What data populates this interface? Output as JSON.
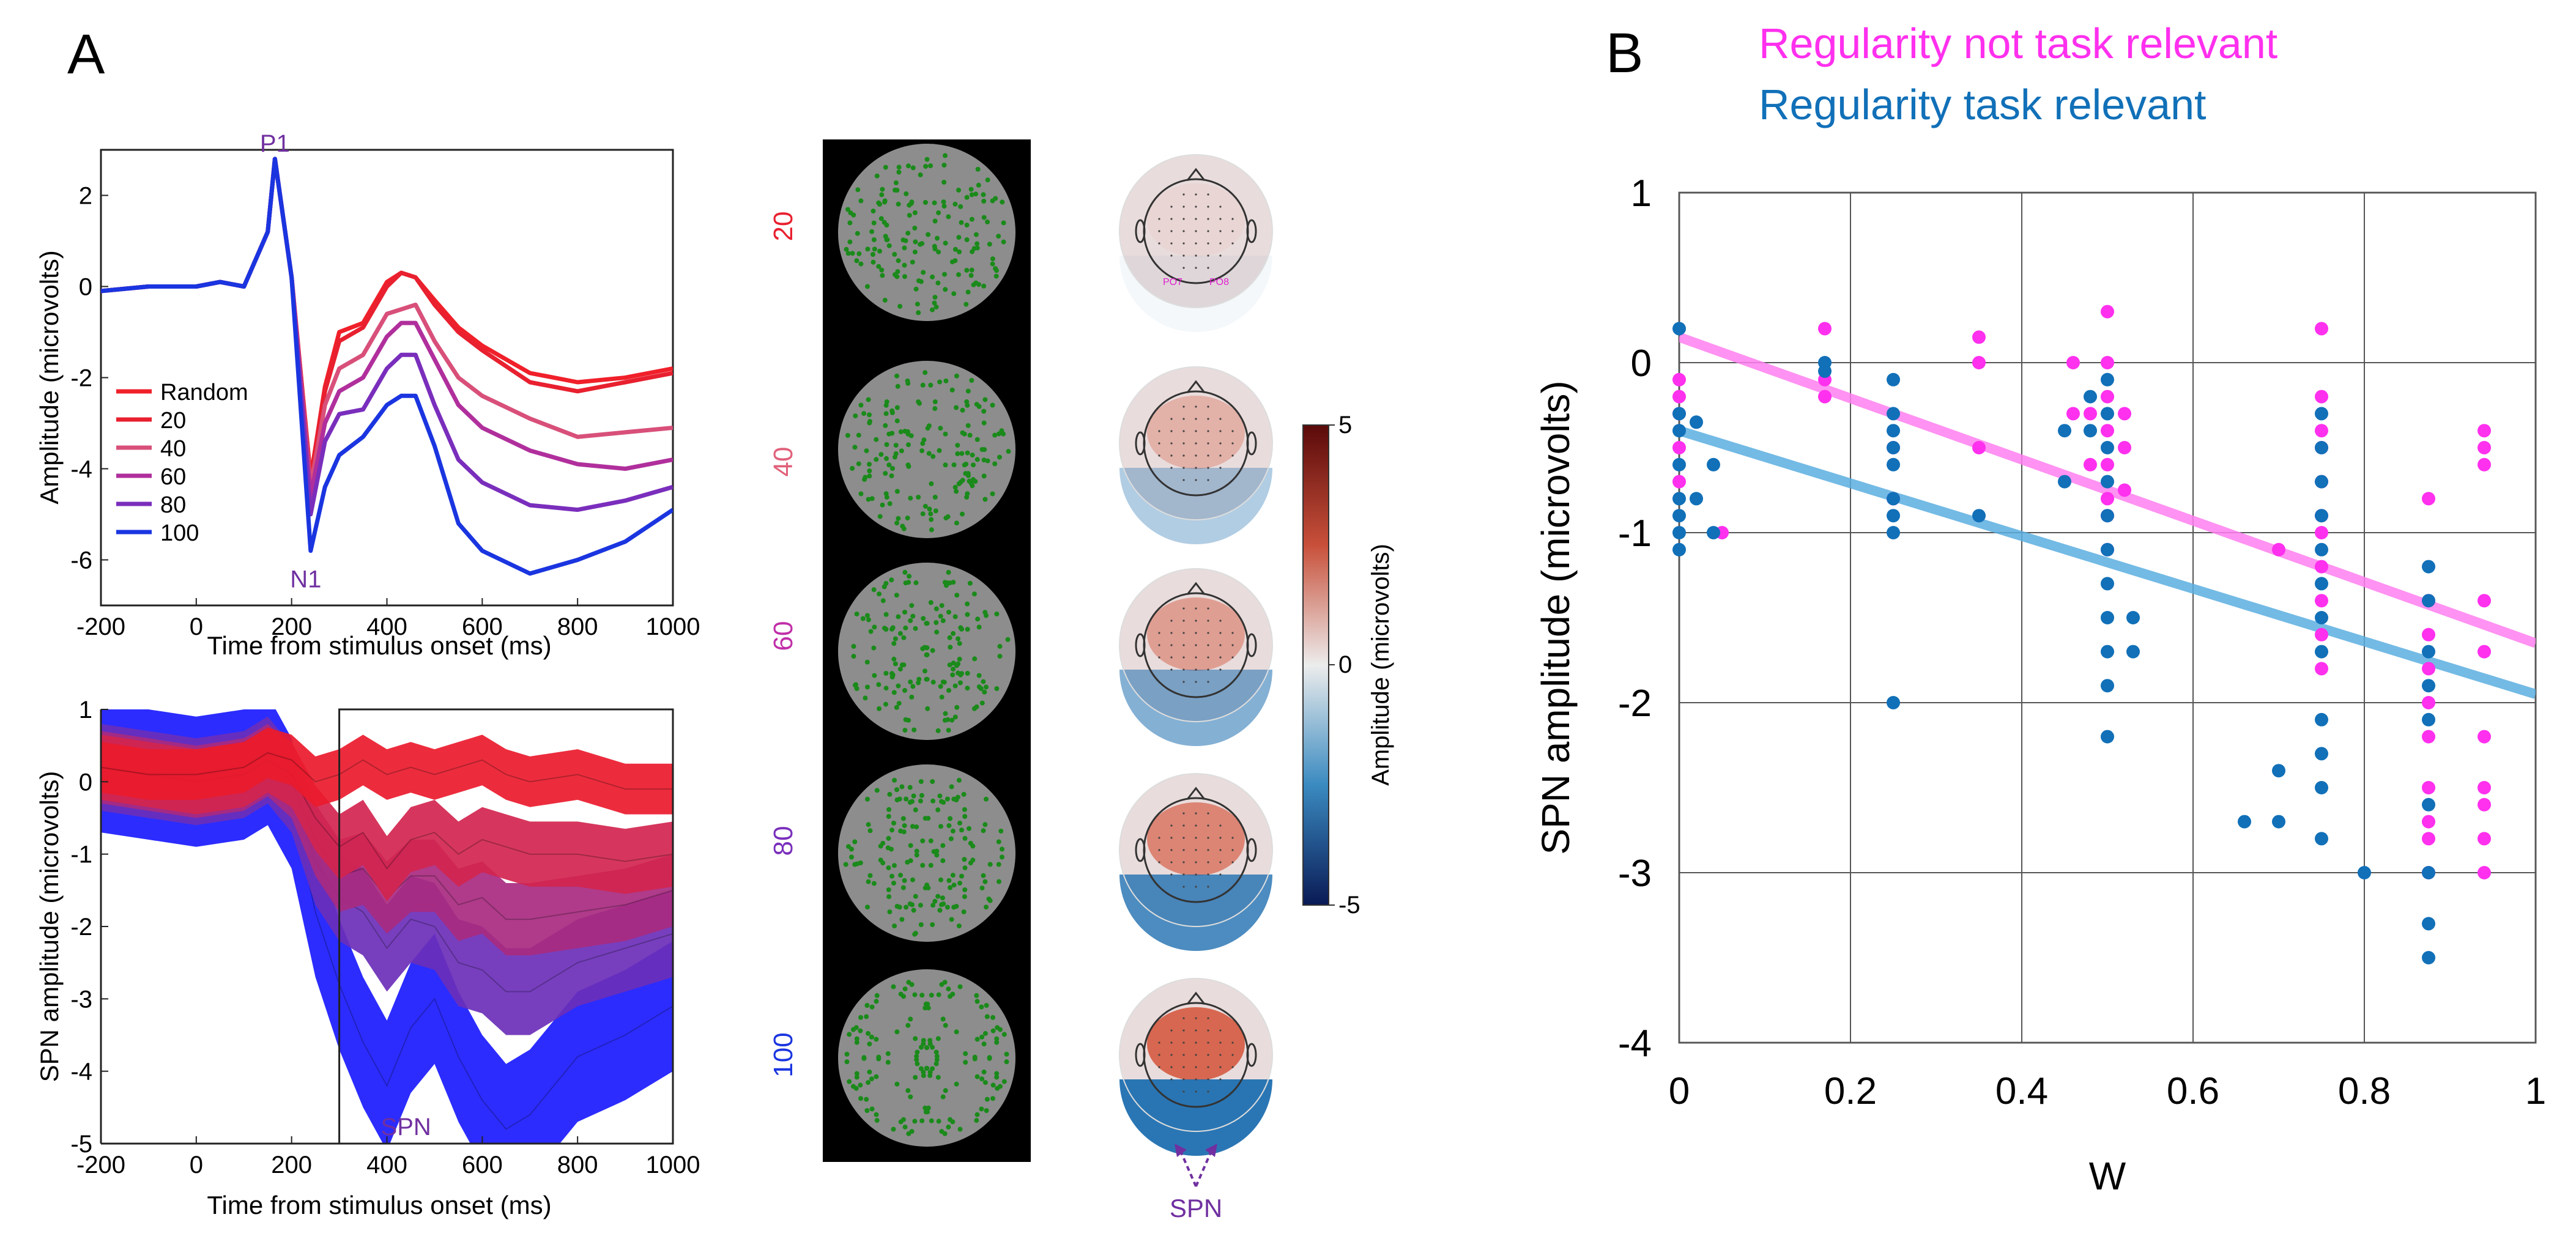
{
  "panel_a": {
    "label": "A",
    "erp": {
      "ylabel": "Amplitude (microvolts)",
      "xlabel": "Time from stimulus onset (ms)",
      "peaks": {
        "p1": "P1",
        "n1": "N1"
      },
      "yticks": [
        "2",
        "0",
        "-2",
        "-4",
        "-6"
      ],
      "xticks": [
        "-200",
        "0",
        "200",
        "400",
        "600",
        "800",
        "1000"
      ],
      "legend": [
        "Random",
        "20",
        "40",
        "60",
        "80",
        "100"
      ]
    },
    "spn": {
      "ylabel": "SPN amplitude (microvolts)",
      "xlabel": "Time from stimulus onset (ms)",
      "window_label": "SPN",
      "yticks": [
        "1",
        "0",
        "-1",
        "-2",
        "-3",
        "-4",
        "-5"
      ],
      "xticks": [
        "-200",
        "0",
        "200",
        "400",
        "600",
        "800",
        "1000"
      ]
    },
    "conditions": [
      "20",
      "40",
      "60",
      "80",
      "100"
    ],
    "colorbar": {
      "label": "Amplitude (microvolts)",
      "max": "5",
      "mid": "0",
      "min": "-5"
    },
    "topo_electrodes": {
      "left": "PO7",
      "right": "PO8"
    },
    "topo_spn_label": "SPN"
  },
  "panel_b": {
    "label": "B",
    "legend": {
      "not_relevant": "Regularity not task relevant",
      "relevant": "Regularity task relevant"
    },
    "ylabel": "SPN amplitude (microvolts)",
    "xlabel": "W",
    "yticks": [
      "1",
      "0",
      "-1",
      "-2",
      "-3",
      "-4"
    ],
    "xticks": [
      "0",
      "0.2",
      "0.4",
      "0.6",
      "0.8",
      "1"
    ]
  },
  "colors": {
    "magenta": "#ff30ee",
    "blue": "#1170b8",
    "purple_annot": "#7030a0",
    "cond20": "#e8202f",
    "cond40": "#d8507a",
    "cond60": "#b02f9c",
    "cond80": "#7a2ebc",
    "cond100": "#1a35e0"
  },
  "chart_data": [
    {
      "type": "line",
      "title": "",
      "xlabel": "Time from stimulus onset (ms)",
      "ylabel": "Amplitude (microvolts)",
      "xlim": [
        -200,
        1000
      ],
      "ylim": [
        -7,
        3
      ],
      "x": [
        -200,
        -100,
        0,
        50,
        100,
        150,
        165,
        200,
        240,
        270,
        300,
        350,
        400,
        430,
        460,
        500,
        550,
        600,
        700,
        800,
        900,
        1000
      ],
      "series": [
        {
          "name": "Random",
          "values": [
            -0.1,
            0,
            0,
            0.1,
            0,
            1.2,
            2.8,
            0.2,
            -4.2,
            -2.2,
            -1.0,
            -0.8,
            0.1,
            0.3,
            0.2,
            -0.3,
            -0.9,
            -1.3,
            -1.9,
            -2.1,
            -2.0,
            -1.8
          ]
        },
        {
          "name": "20",
          "values": [
            -0.1,
            0,
            0,
            0.1,
            0,
            1.2,
            2.8,
            0.2,
            -4.2,
            -2.3,
            -1.2,
            -0.9,
            0.0,
            0.3,
            0.2,
            -0.4,
            -1.0,
            -1.4,
            -2.1,
            -2.3,
            -2.1,
            -1.9
          ]
        },
        {
          "name": "40",
          "values": [
            -0.1,
            0,
            0,
            0.1,
            0,
            1.2,
            2.8,
            0.2,
            -4.4,
            -2.6,
            -1.8,
            -1.5,
            -0.6,
            -0.5,
            -0.4,
            -1.2,
            -2.0,
            -2.4,
            -2.9,
            -3.3,
            -3.2,
            -3.1
          ]
        },
        {
          "name": "60",
          "values": [
            -0.1,
            0,
            0,
            0.1,
            0,
            1.2,
            2.8,
            0.2,
            -4.6,
            -3.0,
            -2.3,
            -2.0,
            -1.1,
            -0.8,
            -0.8,
            -1.6,
            -2.6,
            -3.1,
            -3.6,
            -3.9,
            -4.0,
            -3.8
          ]
        },
        {
          "name": "80",
          "values": [
            -0.1,
            0,
            0,
            0.1,
            0,
            1.2,
            2.8,
            0.2,
            -5.0,
            -3.4,
            -2.8,
            -2.7,
            -1.8,
            -1.5,
            -1.5,
            -2.6,
            -3.8,
            -4.3,
            -4.8,
            -4.9,
            -4.7,
            -4.4
          ]
        },
        {
          "name": "100",
          "values": [
            -0.1,
            0,
            0,
            0.1,
            0,
            1.2,
            2.8,
            0.2,
            -5.8,
            -4.4,
            -3.7,
            -3.3,
            -2.6,
            -2.4,
            -2.4,
            -3.5,
            -5.2,
            -5.8,
            -6.3,
            -6.0,
            -5.6,
            -4.9
          ]
        }
      ]
    },
    {
      "type": "area",
      "title": "",
      "xlabel": "Time from stimulus onset (ms)",
      "ylabel": "SPN amplitude (microvolts)",
      "xlim": [
        -200,
        1000
      ],
      "ylim": [
        -5,
        1
      ],
      "analysis_window": [
        300,
        1000
      ],
      "x": [
        -200,
        -100,
        0,
        100,
        150,
        200,
        250,
        300,
        350,
        400,
        450,
        500,
        550,
        600,
        650,
        700,
        800,
        900,
        1000
      ],
      "series": [
        {
          "name": "20",
          "mean": [
            0.2,
            0.1,
            0.1,
            0.2,
            0.4,
            0.3,
            0.0,
            0.1,
            0.3,
            0.1,
            0.2,
            0.1,
            0.2,
            0.3,
            0.1,
            0.0,
            0.1,
            -0.1,
            -0.1
          ],
          "half_width": 0.35
        },
        {
          "name": "40",
          "mean": [
            0.2,
            0.1,
            0.0,
            0.1,
            0.3,
            0.1,
            -0.5,
            -0.9,
            -0.7,
            -1.2,
            -0.8,
            -0.7,
            -1.0,
            -0.8,
            -0.9,
            -1.0,
            -1.0,
            -1.1,
            -1.0
          ],
          "half_width": 0.45
        },
        {
          "name": "60",
          "mean": [
            0.2,
            0.1,
            0.0,
            0.1,
            0.3,
            0.0,
            -0.8,
            -1.3,
            -1.2,
            -1.6,
            -1.3,
            -1.3,
            -1.7,
            -1.6,
            -1.9,
            -1.9,
            -1.8,
            -1.7,
            -1.5
          ],
          "half_width": 0.5
        },
        {
          "name": "80",
          "mean": [
            0.2,
            0.1,
            0.0,
            0.1,
            0.3,
            -0.1,
            -1.1,
            -1.6,
            -1.8,
            -2.3,
            -1.9,
            -2.0,
            -2.5,
            -2.6,
            -2.9,
            -2.9,
            -2.5,
            -2.3,
            -2.1
          ],
          "half_width": 0.6
        },
        {
          "name": "100",
          "mean": [
            0.2,
            0.1,
            0.0,
            0.1,
            0.3,
            -0.3,
            -1.8,
            -2.8,
            -3.6,
            -4.2,
            -3.4,
            -3.0,
            -3.8,
            -4.4,
            -4.8,
            -4.6,
            -3.8,
            -3.5,
            -3.1
          ],
          "half_width": 0.9
        }
      ]
    },
    {
      "type": "scatter",
      "title": "",
      "xlabel": "W",
      "ylabel": "SPN amplitude (microvolts)",
      "xlim": [
        0,
        1
      ],
      "ylim": [
        -4,
        1
      ],
      "grid": true,
      "legend_position": "top",
      "series": [
        {
          "name": "Regularity not task relevant",
          "points": [
            [
              0,
              -0.1
            ],
            [
              0,
              -0.2
            ],
            [
              0,
              -0.3
            ],
            [
              0,
              -0.5
            ],
            [
              0,
              -0.7
            ],
            [
              0.05,
              -1.0
            ],
            [
              0.17,
              0.2
            ],
            [
              0.17,
              -0.1
            ],
            [
              0.17,
              -0.2
            ],
            [
              0.25,
              -0.5
            ],
            [
              0.25,
              -0.8
            ],
            [
              0.35,
              0.15
            ],
            [
              0.35,
              0.0
            ],
            [
              0.35,
              -0.5
            ],
            [
              0.46,
              0.0
            ],
            [
              0.46,
              -0.3
            ],
            [
              0.48,
              -0.3
            ],
            [
              0.48,
              -0.6
            ],
            [
              0.5,
              0.3
            ],
            [
              0.5,
              0.0
            ],
            [
              0.5,
              -0.2
            ],
            [
              0.5,
              -0.4
            ],
            [
              0.5,
              -0.6
            ],
            [
              0.5,
              -0.8
            ],
            [
              0.5,
              -0.9
            ],
            [
              0.5,
              -1.1
            ],
            [
              0.52,
              -0.3
            ],
            [
              0.52,
              -0.5
            ],
            [
              0.52,
              -0.75
            ],
            [
              0.7,
              -1.1
            ],
            [
              0.75,
              0.2
            ],
            [
              0.75,
              -0.2
            ],
            [
              0.75,
              -0.4
            ],
            [
              0.75,
              -0.5
            ],
            [
              0.75,
              -0.7
            ],
            [
              0.75,
              -0.9
            ],
            [
              0.75,
              -1.0
            ],
            [
              0.75,
              -1.2
            ],
            [
              0.75,
              -1.4
            ],
            [
              0.75,
              -1.6
            ],
            [
              0.75,
              -1.8
            ],
            [
              0.875,
              -0.8
            ],
            [
              0.875,
              -1.4
            ],
            [
              0.875,
              -1.6
            ],
            [
              0.875,
              -1.8
            ],
            [
              0.875,
              -2.0
            ],
            [
              0.875,
              -2.2
            ],
            [
              0.875,
              -2.5
            ],
            [
              0.875,
              -2.7
            ],
            [
              0.875,
              -2.8
            ],
            [
              0.875,
              -3.0
            ],
            [
              0.94,
              -0.4
            ],
            [
              0.94,
              -0.5
            ],
            [
              0.94,
              -0.6
            ],
            [
              0.94,
              -1.4
            ],
            [
              0.94,
              -1.7
            ],
            [
              0.94,
              -2.2
            ],
            [
              0.94,
              -2.5
            ],
            [
              0.94,
              -2.6
            ],
            [
              0.94,
              -2.8
            ],
            [
              0.94,
              -3.0
            ]
          ],
          "trend": [
            [
              0,
              0.15
            ],
            [
              1,
              -1.65
            ]
          ]
        },
        {
          "name": "Regularity task relevant",
          "points": [
            [
              0,
              0.2
            ],
            [
              0,
              -0.3
            ],
            [
              0,
              -0.4
            ],
            [
              0,
              -0.6
            ],
            [
              0,
              -0.8
            ],
            [
              0,
              -0.9
            ],
            [
              0,
              -1.0
            ],
            [
              0,
              -1.1
            ],
            [
              0.02,
              -0.35
            ],
            [
              0.02,
              -0.8
            ],
            [
              0.04,
              -0.6
            ],
            [
              0.04,
              -1.0
            ],
            [
              0.17,
              0.0
            ],
            [
              0.17,
              -0.05
            ],
            [
              0.25,
              -0.1
            ],
            [
              0.25,
              -0.3
            ],
            [
              0.25,
              -0.4
            ],
            [
              0.25,
              -0.5
            ],
            [
              0.25,
              -0.6
            ],
            [
              0.25,
              -0.8
            ],
            [
              0.25,
              -0.9
            ],
            [
              0.25,
              -1.0
            ],
            [
              0.25,
              -2.0
            ],
            [
              0.35,
              -0.9
            ],
            [
              0.45,
              -0.4
            ],
            [
              0.45,
              -0.7
            ],
            [
              0.48,
              -0.2
            ],
            [
              0.48,
              -0.4
            ],
            [
              0.5,
              -0.1
            ],
            [
              0.5,
              -0.3
            ],
            [
              0.5,
              -0.5
            ],
            [
              0.5,
              -0.7
            ],
            [
              0.5,
              -0.9
            ],
            [
              0.5,
              -1.1
            ],
            [
              0.5,
              -1.3
            ],
            [
              0.5,
              -1.5
            ],
            [
              0.5,
              -1.7
            ],
            [
              0.5,
              -1.9
            ],
            [
              0.5,
              -2.2
            ],
            [
              0.53,
              -1.5
            ],
            [
              0.53,
              -1.7
            ],
            [
              0.66,
              -2.7
            ],
            [
              0.7,
              -2.7
            ],
            [
              0.7,
              -2.4
            ],
            [
              0.75,
              -0.3
            ],
            [
              0.75,
              -0.5
            ],
            [
              0.75,
              -0.7
            ],
            [
              0.75,
              -0.9
            ],
            [
              0.75,
              -1.1
            ],
            [
              0.75,
              -1.3
            ],
            [
              0.75,
              -1.5
            ],
            [
              0.75,
              -1.7
            ],
            [
              0.75,
              -2.1
            ],
            [
              0.75,
              -2.3
            ],
            [
              0.75,
              -2.5
            ],
            [
              0.75,
              -2.8
            ],
            [
              0.8,
              -3.0
            ],
            [
              0.875,
              -1.2
            ],
            [
              0.875,
              -1.4
            ],
            [
              0.875,
              -1.7
            ],
            [
              0.875,
              -1.9
            ],
            [
              0.875,
              -2.1
            ],
            [
              0.875,
              -2.6
            ],
            [
              0.875,
              -3.0
            ],
            [
              0.875,
              -3.3
            ],
            [
              0.875,
              -3.5
            ]
          ],
          "trend": [
            [
              0,
              -0.4
            ],
            [
              1,
              -1.95
            ]
          ]
        }
      ]
    }
  ]
}
